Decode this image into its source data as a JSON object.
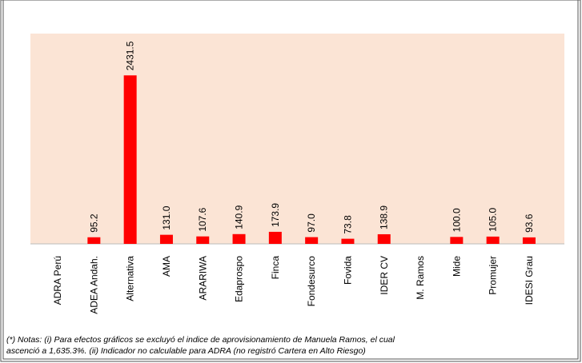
{
  "chart_data": {
    "type": "bar",
    "categories": [
      "ADRA Perú",
      "ADEA Andah.",
      "Alternativa",
      "AMA",
      "ARARIWA",
      "Edaprospo",
      "Finca",
      "Fondesurco",
      "Fovida",
      "IDER CV",
      "M. Ramos",
      "Mide",
      "Promujer",
      "IDESI Grau"
    ],
    "values": [
      null,
      95.2,
      2431.5,
      131.0,
      107.6,
      140.9,
      173.9,
      97.0,
      73.8,
      138.9,
      null,
      100.0,
      105.0,
      93.6
    ],
    "value_labels": [
      null,
      "95.2",
      "2431.5",
      "131.0",
      "107.6",
      "140.9",
      "173.9",
      "97.0",
      "73.8",
      "138.9",
      null,
      "100.0",
      "105.0",
      "93.6"
    ],
    "color": "#ff0000",
    "ylim": [
      0,
      3000
    ],
    "notes": [
      "(*) Notas: (i) Para efectos gráficos se excluyó el indice de aprovisionamiento de Manuela Ramos, el cual",
      "ascenció a 1,635.3%. (ii) Indicador no calculable para ADRA (no registró Cartera en Alto Riesgo)"
    ]
  }
}
